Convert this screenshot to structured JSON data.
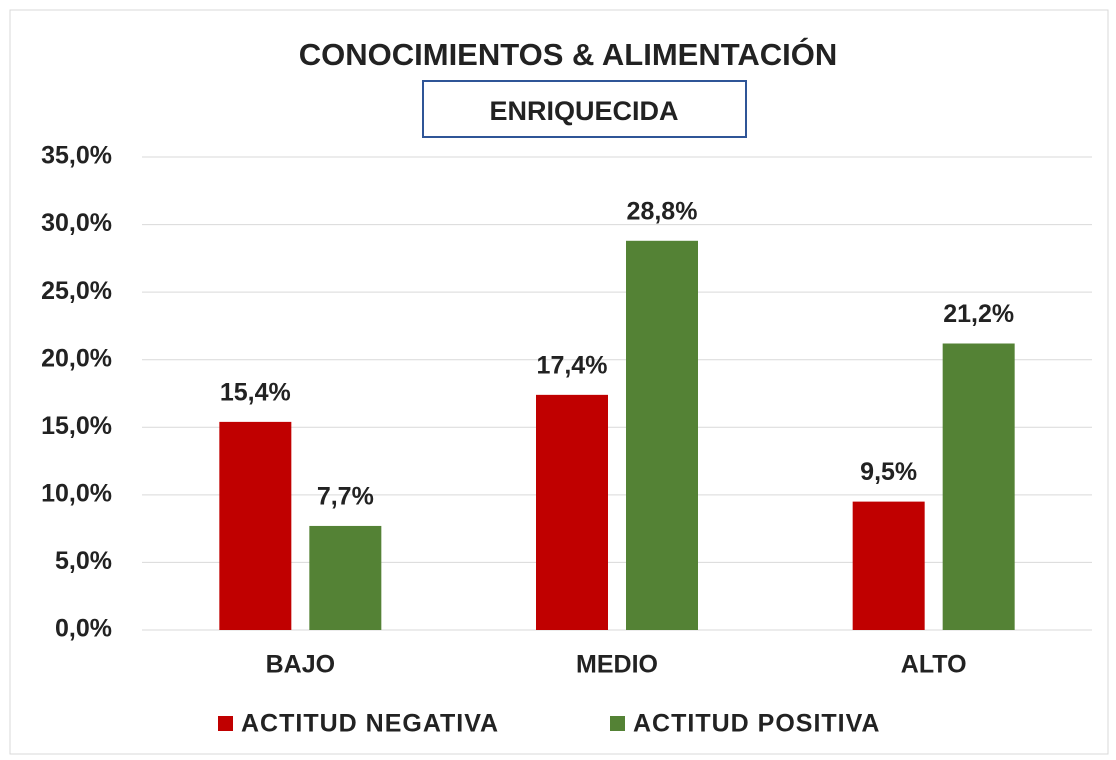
{
  "chart_data": {
    "type": "bar",
    "title": "CONOCIMIENTOS & ALIMENTACIÓN",
    "subtitle": "ENRIQUECIDA",
    "categories": [
      "BAJO",
      "MEDIO",
      "ALTO"
    ],
    "series": [
      {
        "name": "ACTITUD NEGATIVA",
        "color": "#c00000",
        "values": [
          15.4,
          17.4,
          9.5
        ],
        "value_labels": [
          "15,4%",
          "17,4%",
          "9,5%"
        ]
      },
      {
        "name": "ACTITUD POSITIVA",
        "color": "#548235",
        "values": [
          7.7,
          28.8,
          21.2
        ],
        "value_labels": [
          "7,7%",
          "28,8%",
          "21,2%"
        ]
      }
    ],
    "ylim": [
      0,
      35
    ],
    "yticks": [
      {
        "value": 0,
        "label": "0,0%"
      },
      {
        "value": 5,
        "label": "5,0%"
      },
      {
        "value": 10,
        "label": "10,0%"
      },
      {
        "value": 15,
        "label": "15,0%"
      },
      {
        "value": 20,
        "label": "20,0%"
      },
      {
        "value": 25,
        "label": "25,0%"
      },
      {
        "value": 30,
        "label": "30,0%"
      },
      {
        "value": 35,
        "label": "35,0%"
      }
    ],
    "grid": true,
    "legend": "bottom"
  }
}
